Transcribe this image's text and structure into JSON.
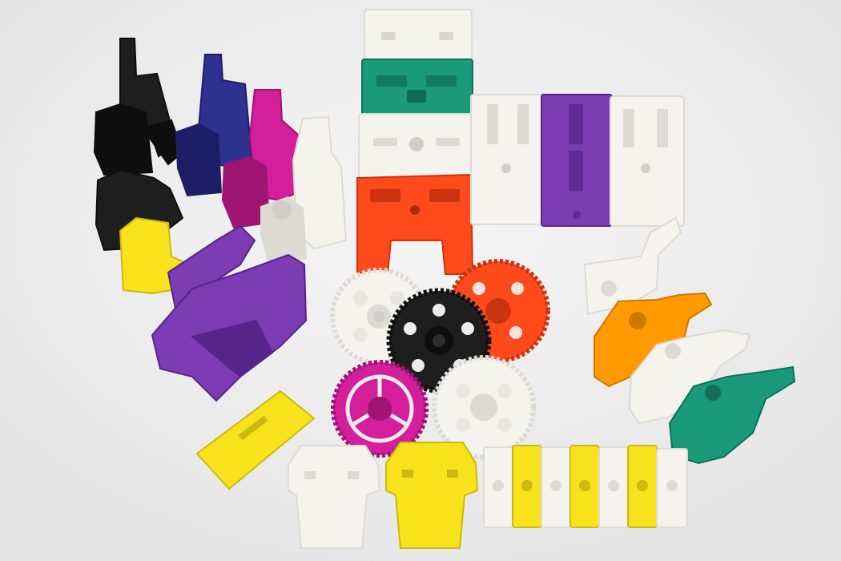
{
  "image": {
    "colors": {
      "background": "#ededed",
      "white": "#f4f3ee",
      "white_shade": "#dcdad2",
      "black": "#1e1e1e",
      "black_shade": "#0e0e0e",
      "navy": "#2d3290",
      "navy_shade": "#1c1f66",
      "magenta": "#d41f9c",
      "magenta_shade": "#9e1574",
      "teal": "#1a9a78",
      "teal_shade": "#117056",
      "purple": "#7d3cb4",
      "purple_shade": "#57248a",
      "red_orange": "#ff4a1c",
      "red_orange_shade": "#c9330f",
      "yellow": "#f8e21b",
      "yellow_shade": "#cbb90f",
      "orange": "#ff9a00",
      "orange_shade": "#cf7600"
    }
  }
}
